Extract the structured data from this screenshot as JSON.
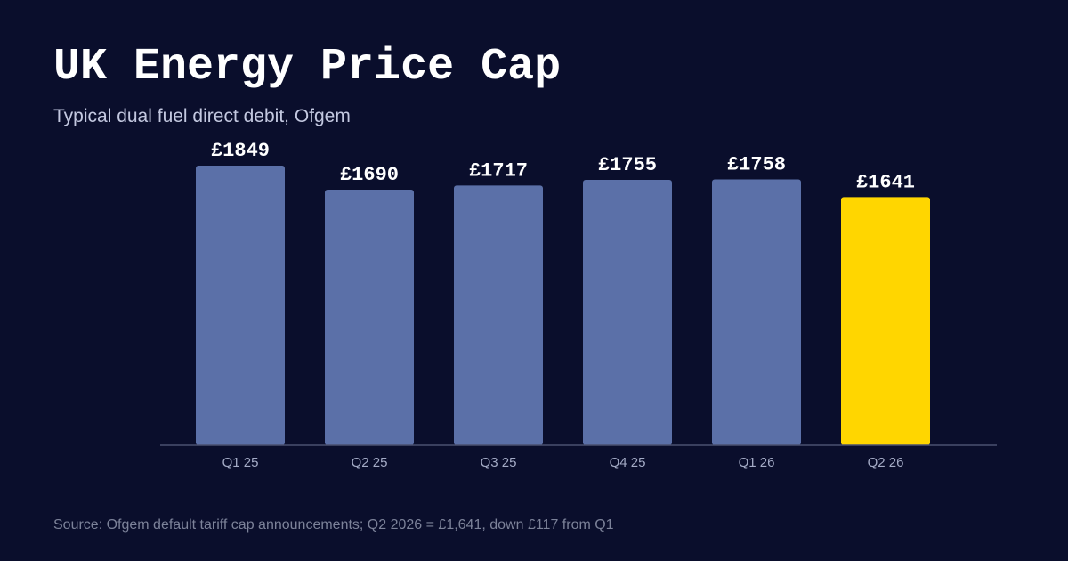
{
  "header": {
    "title": "UK Energy Price Cap",
    "subtitle": "Typical dual fuel direct debit, Ofgem"
  },
  "footer": {
    "source": "Source: Ofgem default tariff cap announcements; Q2 2026 = £1,641, down £117 from Q1"
  },
  "colors": {
    "background": "#0a0e2c",
    "bar": "#5b70a8",
    "highlight_bar": "#ffd600",
    "axis": "#4a5070"
  },
  "chart_data": {
    "type": "bar",
    "title": "UK Energy Price Cap",
    "subtitle": "Typical dual fuel direct debit, Ofgem",
    "categories": [
      "Q1 25",
      "Q2 25",
      "Q3 25",
      "Q4 25",
      "Q1 26",
      "Q2 26"
    ],
    "values": [
      1849,
      1690,
      1717,
      1755,
      1758,
      1641
    ],
    "value_labels": [
      "£1849",
      "£1690",
      "£1717",
      "£1755",
      "£1758",
      "£1641"
    ],
    "highlight_category": "Q2 26",
    "xlabel": "",
    "ylabel": "",
    "grid": false,
    "legend": "none"
  }
}
